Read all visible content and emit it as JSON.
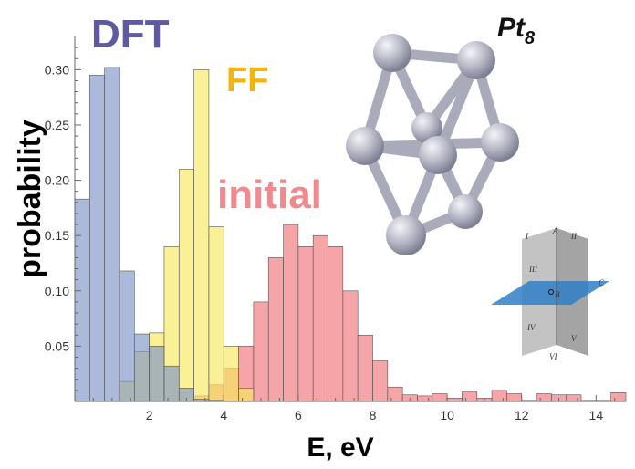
{
  "chart_data": {
    "type": "bar",
    "xlabel": "E, eV",
    "ylabel": "probability",
    "xlim": [
      0,
      14.8
    ],
    "ylim": [
      0,
      0.33
    ],
    "xticks": [
      2,
      4,
      6,
      8,
      10,
      12,
      14
    ],
    "yticks": [
      0.05,
      0.1,
      0.15,
      0.2,
      0.25,
      0.3
    ],
    "ytick_labels": [
      "0.05",
      "0.10",
      "0.15",
      "0.20",
      "0.25",
      "0.30"
    ],
    "bin_width": 0.4,
    "series": [
      {
        "name": "initial",
        "color": "#f0747a",
        "label_color": "#f08a8e",
        "bins_start": [
          3.2,
          3.6,
          4.0,
          4.4,
          4.8,
          5.2,
          5.6,
          6.0,
          6.4,
          6.8,
          7.2,
          7.6,
          8.0,
          8.4,
          8.8,
          9.2,
          9.6,
          10.0,
          10.4,
          10.8,
          11.2,
          11.6,
          12.0,
          12.4,
          12.8,
          13.2,
          13.6,
          14.0,
          14.4
        ],
        "values": [
          0.005,
          0.015,
          0.03,
          0.05,
          0.09,
          0.13,
          0.16,
          0.14,
          0.15,
          0.14,
          0.1,
          0.06,
          0.037,
          0.013,
          0.006,
          0.005,
          0.007,
          0.003,
          0.009,
          0.003,
          0.01,
          0.007,
          0.001,
          0.007,
          0.006,
          0.006,
          0.001,
          0.001,
          0.008
        ]
      },
      {
        "name": "FF",
        "color": "#f7e85e",
        "label_color": "#f2b40e",
        "bins_start": [
          1.2,
          1.6,
          2.0,
          2.4,
          2.8,
          3.2,
          3.6,
          4.0,
          4.4
        ],
        "values": [
          0.018,
          0.045,
          0.062,
          0.14,
          0.21,
          0.3,
          0.158,
          0.05,
          0.012
        ]
      },
      {
        "name": "DFT",
        "color": "#7e94c8",
        "label_color": "#5d5aa2",
        "bins_start": [
          0.0,
          0.4,
          0.8,
          1.2,
          1.6,
          2.0,
          2.4,
          2.8,
          3.2,
          3.6,
          4.0,
          4.4
        ],
        "values": [
          0.183,
          0.295,
          0.302,
          0.118,
          0.061,
          0.05,
          0.032,
          0.012,
          0.002,
          0.001,
          0.0,
          0.0
        ]
      }
    ],
    "inset_text": {
      "molecule": "Pt",
      "subscript": "8",
      "regions": [
        "I",
        "II",
        "III",
        "IV",
        "V",
        "VI",
        "A",
        "B",
        "C"
      ]
    }
  }
}
